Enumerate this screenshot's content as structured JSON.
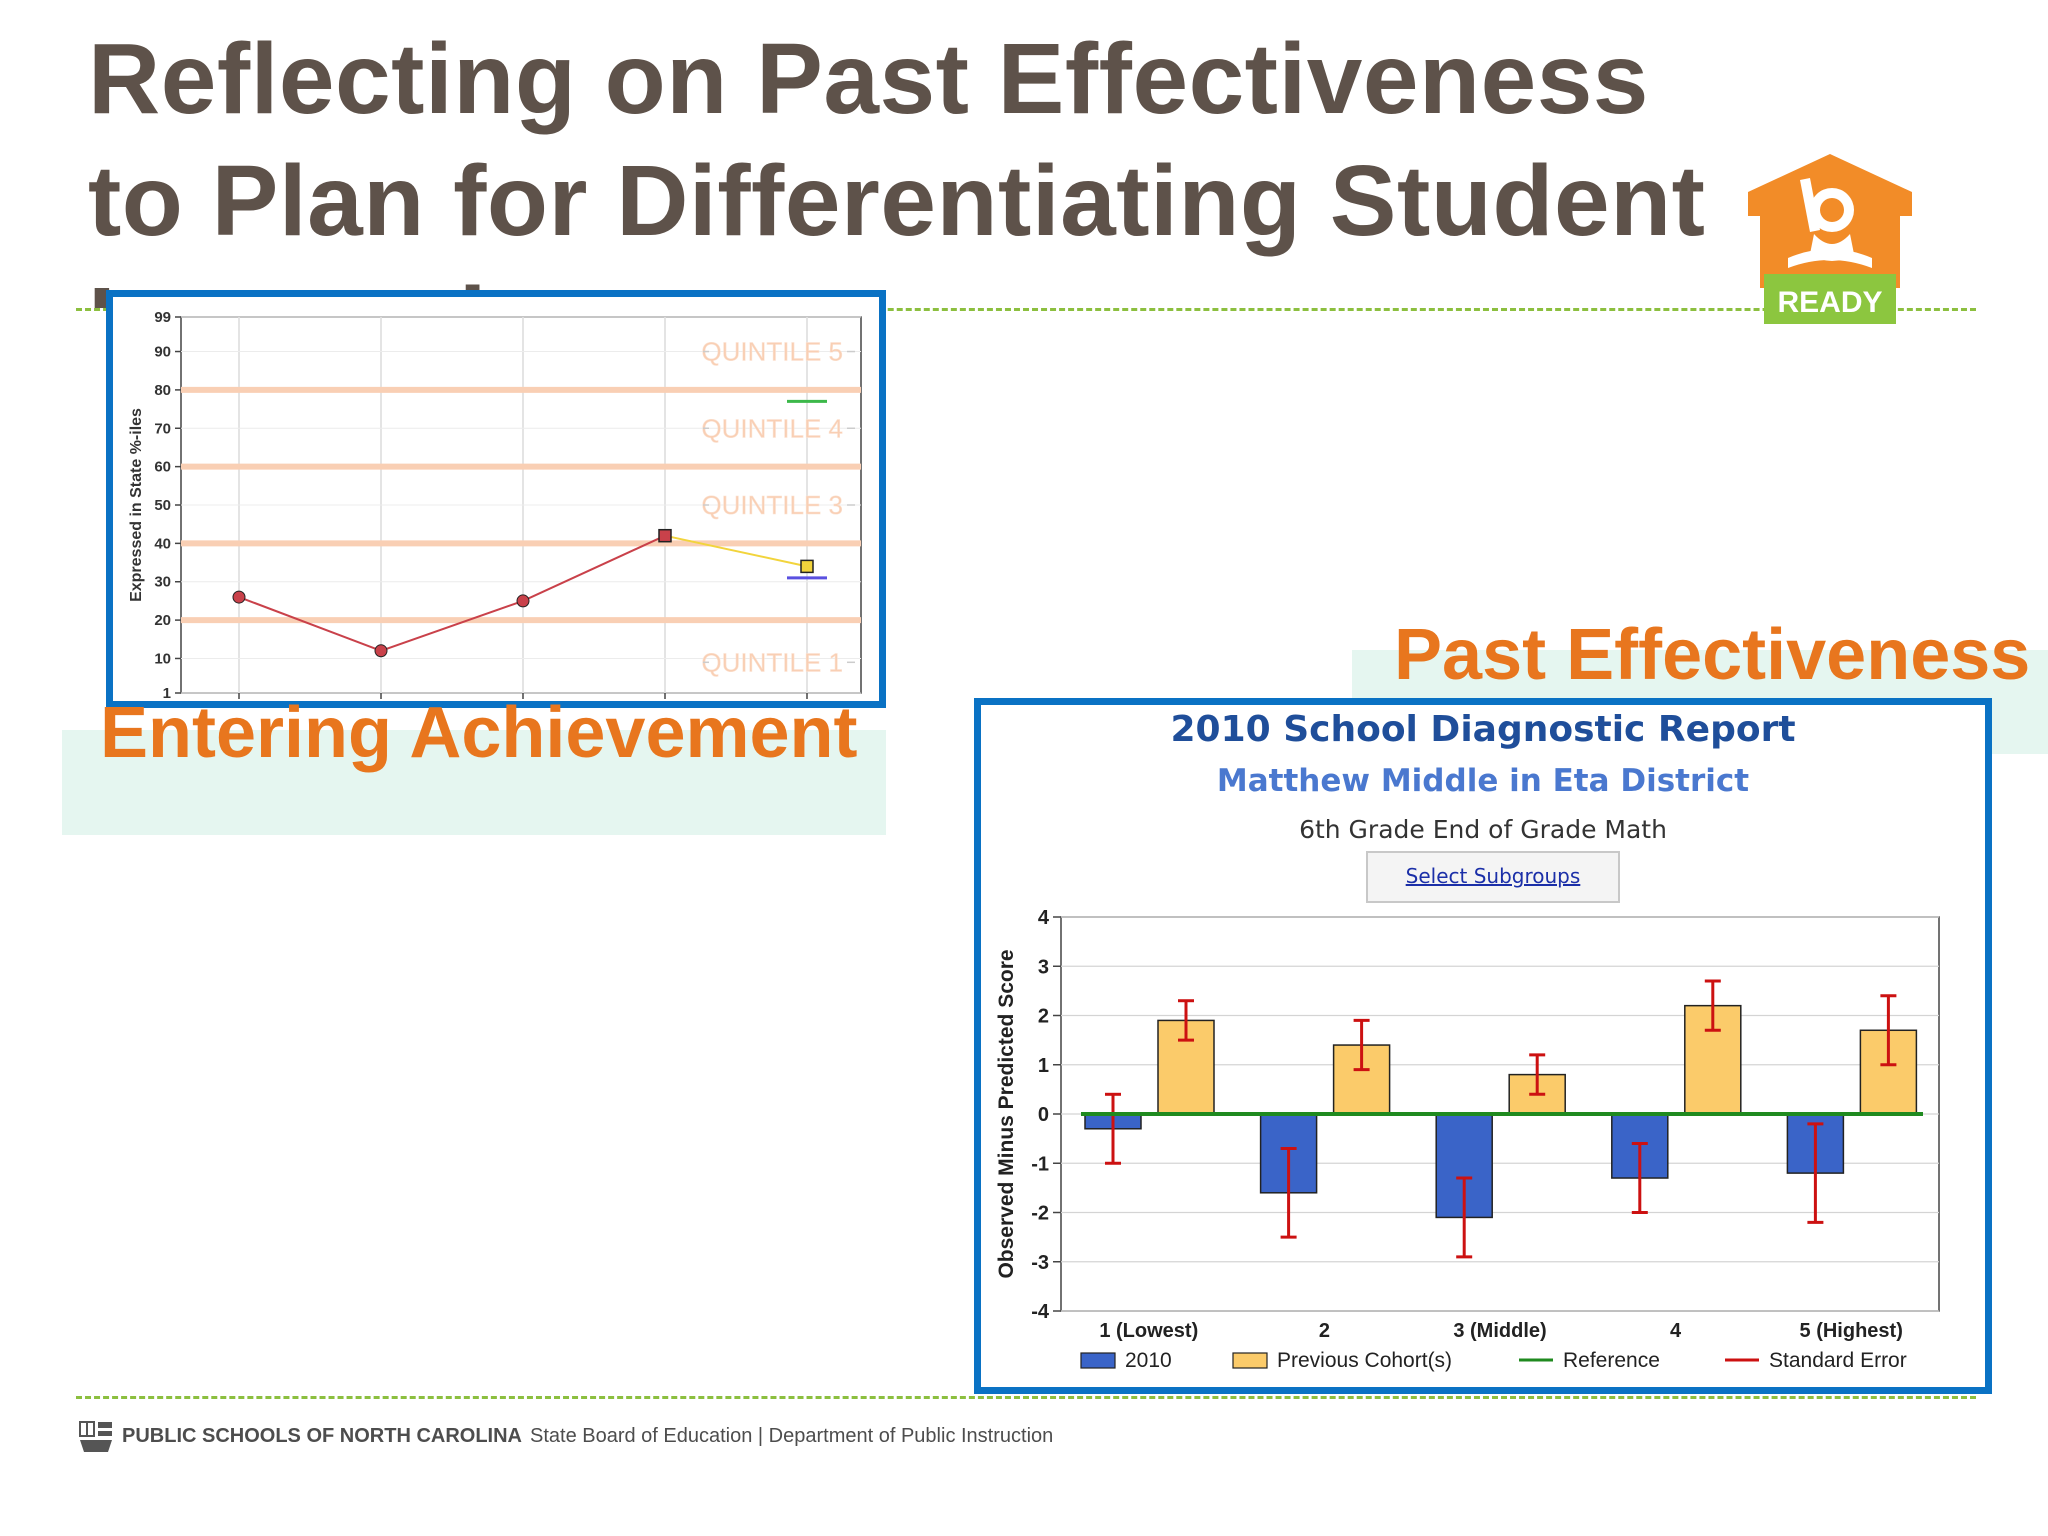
{
  "slide": {
    "title": "Reflecting on Past Effectiveness to Plan for Differentiating Student Instruction",
    "label_entering": "Entering Achievement",
    "label_past": "Past Effectiveness"
  },
  "logo": {
    "text": "READY",
    "icon": "ready-house-logo"
  },
  "footer": {
    "icon": "state-seal-icon",
    "bold": "PUBLIC SCHOOLS OF NORTH CAROLINA",
    "text": "State Board of Education | Department of Public Instruction"
  },
  "report": {
    "title": "2010 School Diagnostic Report",
    "school": "Matthew Middle in Eta District",
    "subject": "6th Grade End of Grade Math",
    "subgroups_link": "Select Subgroups"
  },
  "colors": {
    "frame": "#0a72c4",
    "accent_orange": "#e8761e",
    "bar_2010": "#3a64c8",
    "bar_previous": "#fbcb6a",
    "reference_line": "#1f8a1f",
    "error_bar": "#cc1111",
    "quintile_band": "#f9cfb4",
    "line_series": "#c9414a",
    "projection_series": "#f2d43c"
  },
  "chart_data": [
    {
      "type": "line",
      "ylabel": "Expressed in State %-iles",
      "ylim": [
        1,
        99
      ],
      "yticks": [
        1,
        10,
        20,
        30,
        40,
        50,
        60,
        70,
        80,
        90,
        99
      ],
      "grid": true,
      "quintile_boundaries": [
        20,
        40,
        60,
        80
      ],
      "quintile_labels": [
        {
          "label": "QUINTILE 5",
          "y": 90
        },
        {
          "label": "QUINTILE 4",
          "y": 70
        },
        {
          "label": "QUINTILE 3",
          "y": 50
        },
        {
          "label": "QUINTILE 1",
          "y": 9
        }
      ],
      "x": [
        1,
        2,
        3,
        4,
        5
      ],
      "series": [
        {
          "kind": "actual",
          "x": [
            1,
            2,
            3,
            4
          ],
          "values": [
            26,
            12,
            25,
            42
          ]
        },
        {
          "kind": "projection",
          "x": [
            4,
            5
          ],
          "values": [
            42,
            34
          ]
        }
      ],
      "markers": [
        {
          "kind": "green",
          "x": 5,
          "y": 77
        },
        {
          "kind": "blue",
          "x": 5,
          "y": 31
        }
      ]
    },
    {
      "type": "bar",
      "title": "2010 School Diagnostic Report",
      "xlabel": "",
      "ylabel": "Observed Minus Predicted Score",
      "ylim": [
        -4,
        4
      ],
      "yticks": [
        4,
        3,
        2,
        1,
        0,
        -1,
        -2,
        -3,
        -4
      ],
      "categories": [
        "1 (Lowest)",
        "2",
        "3 (Middle)",
        "4",
        "5 (Highest)"
      ],
      "series": [
        {
          "name": "2010",
          "values": [
            -0.3,
            -1.6,
            -2.1,
            -1.3,
            -1.2
          ],
          "error_low": [
            -1.0,
            -2.5,
            -2.9,
            -2.0,
            -2.2
          ],
          "error_high": [
            0.4,
            -0.7,
            -1.3,
            -0.6,
            -0.2
          ]
        },
        {
          "name": "Previous Cohort(s)",
          "values": [
            1.9,
            1.4,
            0.8,
            2.2,
            1.7
          ],
          "error_low": [
            1.5,
            0.9,
            0.4,
            1.7,
            1.0
          ],
          "error_high": [
            2.3,
            1.9,
            1.2,
            2.7,
            2.4
          ]
        }
      ],
      "reference": 0,
      "legend": [
        "2010",
        "Previous Cohort(s)",
        "Reference",
        "Standard Error"
      ],
      "legend_position": "bottom",
      "grid": true
    }
  ]
}
